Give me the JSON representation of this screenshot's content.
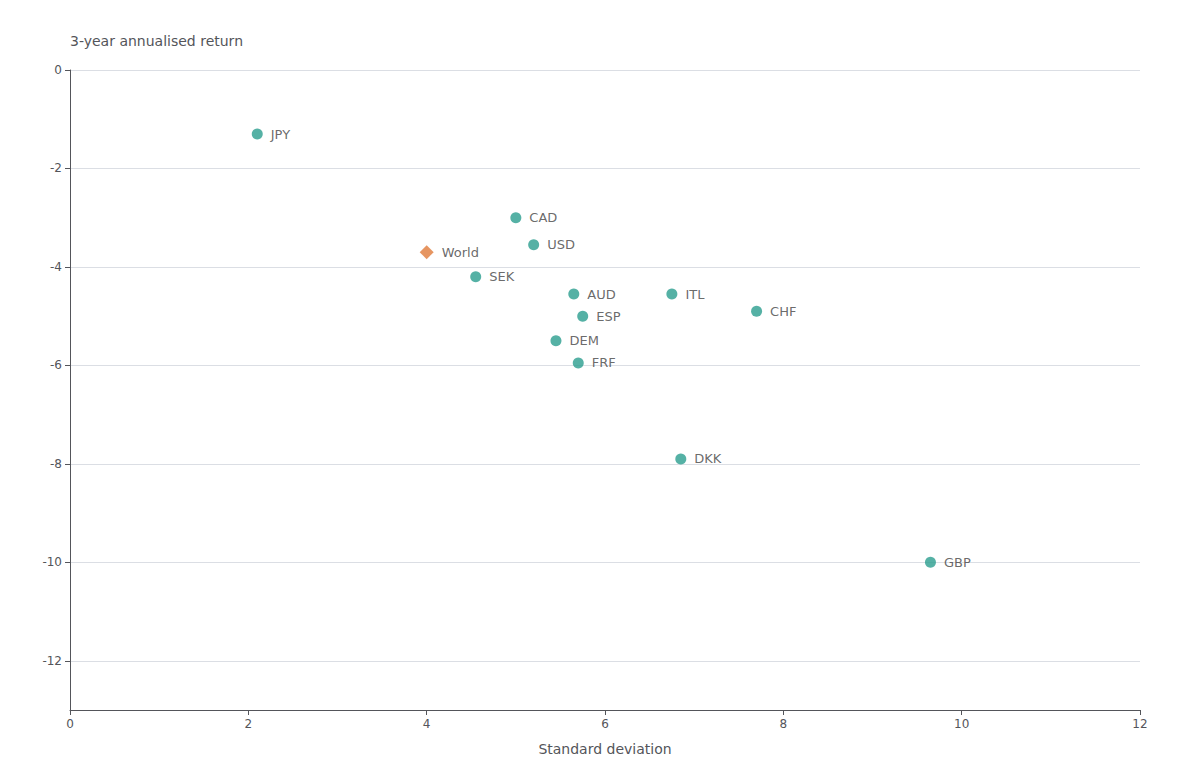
{
  "chart_data": {
    "type": "scatter",
    "xlabel": "Standard deviation",
    "ylabel": "3-year annualised return",
    "points": [
      {
        "label": "JPY",
        "x": 2.1,
        "y": -1.3,
        "color": "#2a9d8f",
        "marker": "circle"
      },
      {
        "label": "CAD",
        "x": 5.0,
        "y": -3.0,
        "color": "#2a9d8f",
        "marker": "circle"
      },
      {
        "label": "USD",
        "x": 5.2,
        "y": -3.55,
        "color": "#2a9d8f",
        "marker": "circle"
      },
      {
        "label": "SEK",
        "x": 4.55,
        "y": -4.2,
        "color": "#2a9d8f",
        "marker": "circle"
      },
      {
        "label": "AUD",
        "x": 5.65,
        "y": -4.55,
        "color": "#2a9d8f",
        "marker": "circle"
      },
      {
        "label": "ITL",
        "x": 6.75,
        "y": -4.55,
        "color": "#2a9d8f",
        "marker": "circle"
      },
      {
        "label": "ESP",
        "x": 5.75,
        "y": -5.0,
        "color": "#2a9d8f",
        "marker": "circle"
      },
      {
        "label": "CHF",
        "x": 7.7,
        "y": -4.9,
        "color": "#2a9d8f",
        "marker": "circle"
      },
      {
        "label": "DEM",
        "x": 5.45,
        "y": -5.5,
        "color": "#2a9d8f",
        "marker": "circle"
      },
      {
        "label": "FRF",
        "x": 5.7,
        "y": -5.95,
        "color": "#2a9d8f",
        "marker": "circle"
      },
      {
        "label": "DKK",
        "x": 6.85,
        "y": -7.9,
        "color": "#2a9d8f",
        "marker": "circle"
      },
      {
        "label": "GBP",
        "x": 9.65,
        "y": -10.0,
        "color": "#2a9d8f",
        "marker": "circle"
      },
      {
        "label": "World",
        "x": 4.0,
        "y": -3.7,
        "color": "#e07b39",
        "marker": "diamond"
      }
    ],
    "xlim": [
      0,
      12
    ],
    "ylim": [
      -13,
      0
    ],
    "xticks": [
      0,
      2,
      4,
      6,
      8,
      10,
      12
    ],
    "yticks": [
      0,
      -2,
      -4,
      -6,
      -8,
      -10,
      -12
    ],
    "grid": true
  }
}
